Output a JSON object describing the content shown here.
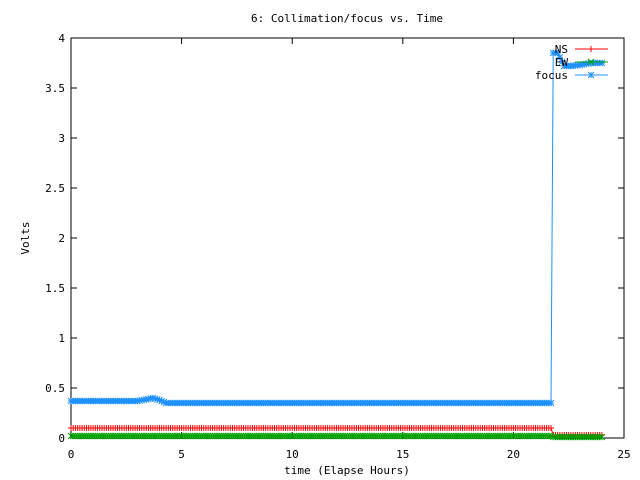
{
  "chart_data": {
    "type": "line",
    "title": "6: Collimation/focus vs. Time",
    "xlabel": "time (Elapse Hours)",
    "ylabel": "Volts",
    "xlim": [
      0,
      25
    ],
    "ylim": [
      0,
      4
    ],
    "x_ticks": [
      0,
      5,
      10,
      15,
      20,
      25
    ],
    "y_ticks": [
      0,
      0.5,
      1,
      1.5,
      2,
      2.5,
      3,
      3.5,
      4
    ],
    "grid": false,
    "legend_position": "top-right",
    "series": [
      {
        "name": "NS",
        "color": "#ff0000",
        "marker": "plus",
        "x": [
          0,
          3,
          6,
          9,
          12,
          15,
          18,
          21,
          21.7,
          21.8,
          22,
          22.5,
          23,
          23.5,
          24
        ],
        "y": [
          0.1,
          0.1,
          0.1,
          0.1,
          0.1,
          0.1,
          0.1,
          0.1,
          0.1,
          0.03,
          0.03,
          0.03,
          0.03,
          0.03,
          0.03
        ]
      },
      {
        "name": "EW",
        "color": "#00a000",
        "marker": "x",
        "x": [
          0,
          3,
          6,
          9,
          12,
          15,
          18,
          21,
          21.7,
          21.8,
          22,
          22.5,
          23,
          23.5,
          24
        ],
        "y": [
          0.02,
          0.02,
          0.02,
          0.02,
          0.02,
          0.02,
          0.02,
          0.02,
          0.02,
          0.01,
          0.01,
          0.01,
          0.01,
          0.01,
          0.01
        ]
      },
      {
        "name": "focus",
        "color": "#1e90ff",
        "marker": "star",
        "x": [
          0,
          1,
          2,
          3,
          3.5,
          3.7,
          4.0,
          4.3,
          4.5,
          6,
          9,
          12,
          15,
          18,
          21,
          21.7,
          21.8,
          22.0,
          22.3,
          22.6,
          23,
          23.5,
          24
        ],
        "y": [
          0.37,
          0.37,
          0.37,
          0.37,
          0.39,
          0.4,
          0.38,
          0.35,
          0.35,
          0.35,
          0.35,
          0.35,
          0.35,
          0.35,
          0.35,
          0.35,
          3.85,
          3.85,
          3.72,
          3.72,
          3.73,
          3.75,
          3.75
        ]
      }
    ]
  }
}
